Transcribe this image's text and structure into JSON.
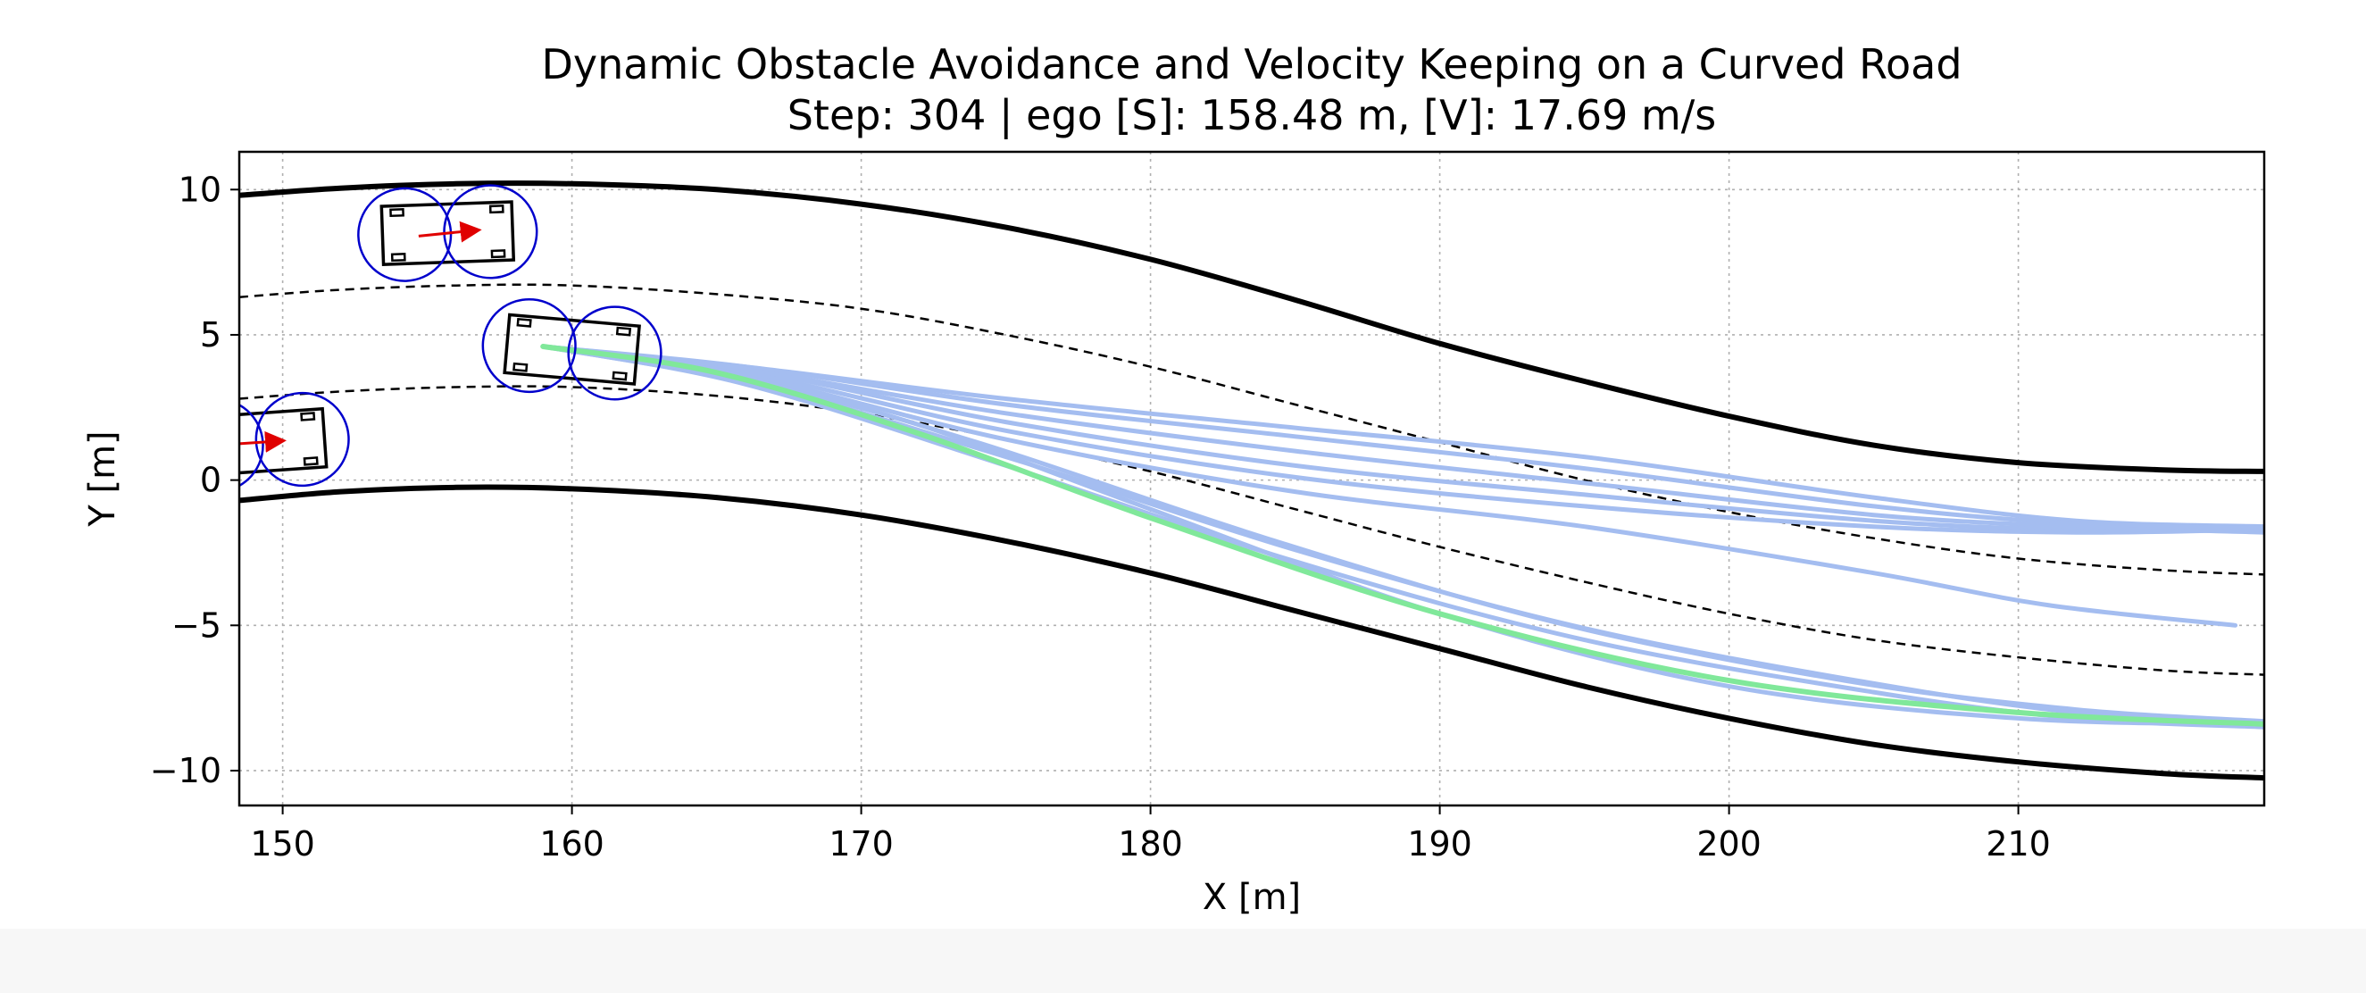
{
  "chart_data": {
    "type": "line",
    "title": "Dynamic Obstacle Avoidance and Velocity Keeping on a Curved Road",
    "subtitle": "Step: 304 | ego [S]: 158.48 m, [V]: 17.69 m/s",
    "xlabel": "X [m]",
    "ylabel": "Y [m]",
    "xlim": [
      148.5,
      218.5
    ],
    "ylim": [
      -11.2,
      11.3
    ],
    "xticks": [
      150,
      160,
      170,
      180,
      190,
      200,
      210
    ],
    "xtick_labels": [
      "150",
      "160",
      "170",
      "180",
      "190",
      "200",
      "210"
    ],
    "yticks": [
      10,
      5,
      0,
      -5,
      -10
    ],
    "ytick_labels": [
      "10",
      "5",
      "0",
      "−5",
      "−10"
    ],
    "grid": true,
    "road_boundaries": [
      {
        "name": "road-upper-boundary",
        "style": "solid",
        "color": "#000000",
        "points": [
          [
            148.5,
            9.8
          ],
          [
            152,
            10.05
          ],
          [
            156,
            10.2
          ],
          [
            160,
            10.2
          ],
          [
            165,
            10.0
          ],
          [
            170,
            9.5
          ],
          [
            175,
            8.7
          ],
          [
            180,
            7.6
          ],
          [
            185,
            6.2
          ],
          [
            190,
            4.7
          ],
          [
            195,
            3.4
          ],
          [
            200,
            2.2
          ],
          [
            205,
            1.2
          ],
          [
            210,
            0.6
          ],
          [
            215,
            0.35
          ],
          [
            218.5,
            0.3
          ]
        ]
      },
      {
        "name": "road-lower-boundary",
        "style": "solid",
        "color": "#000000",
        "points": [
          [
            148.5,
            -0.7
          ],
          [
            152,
            -0.4
          ],
          [
            156,
            -0.25
          ],
          [
            160,
            -0.3
          ],
          [
            165,
            -0.6
          ],
          [
            170,
            -1.2
          ],
          [
            175,
            -2.1
          ],
          [
            180,
            -3.2
          ],
          [
            185,
            -4.5
          ],
          [
            190,
            -5.8
          ],
          [
            195,
            -7.1
          ],
          [
            200,
            -8.2
          ],
          [
            205,
            -9.1
          ],
          [
            210,
            -9.7
          ],
          [
            215,
            -10.1
          ],
          [
            218.5,
            -10.25
          ]
        ]
      }
    ],
    "lane_lines": [
      {
        "name": "lane-divider-upper",
        "style": "dashed",
        "color": "#000000",
        "points": [
          [
            148.5,
            6.3
          ],
          [
            152,
            6.55
          ],
          [
            156,
            6.7
          ],
          [
            160,
            6.7
          ],
          [
            165,
            6.4
          ],
          [
            170,
            5.9
          ],
          [
            175,
            5.0
          ],
          [
            180,
            3.9
          ],
          [
            185,
            2.6
          ],
          [
            190,
            1.3
          ],
          [
            195,
            0.0
          ],
          [
            200,
            -1.1
          ],
          [
            205,
            -2.0
          ],
          [
            210,
            -2.7
          ],
          [
            215,
            -3.1
          ],
          [
            218.5,
            -3.25
          ]
        ]
      },
      {
        "name": "lane-divider-lower",
        "style": "dashed",
        "color": "#000000",
        "points": [
          [
            148.5,
            2.8
          ],
          [
            152,
            3.05
          ],
          [
            156,
            3.2
          ],
          [
            160,
            3.2
          ],
          [
            165,
            2.9
          ],
          [
            170,
            2.3
          ],
          [
            175,
            1.4
          ],
          [
            180,
            0.3
          ],
          [
            185,
            -1.0
          ],
          [
            190,
            -2.3
          ],
          [
            195,
            -3.5
          ],
          [
            200,
            -4.6
          ],
          [
            205,
            -5.5
          ],
          [
            210,
            -6.1
          ],
          [
            215,
            -6.55
          ],
          [
            218.5,
            -6.7
          ]
        ]
      }
    ],
    "candidate_trajectories": {
      "color": "#a4bdf0",
      "series": [
        {
          "name": "candidate-1",
          "points": [
            [
              159,
              4.6
            ],
            [
              166,
              3.9
            ],
            [
              175,
              2.8
            ],
            [
              185,
              1.8
            ],
            [
              195,
              0.8
            ],
            [
              205,
              -0.6
            ],
            [
              212,
              -1.4
            ],
            [
              218.5,
              -1.6
            ]
          ]
        },
        {
          "name": "candidate-2",
          "points": [
            [
              159,
              4.6
            ],
            [
              166,
              3.9
            ],
            [
              175,
              2.6
            ],
            [
              185,
              1.5
            ],
            [
              195,
              0.4
            ],
            [
              205,
              -0.9
            ],
            [
              212,
              -1.5
            ],
            [
              218.5,
              -1.7
            ]
          ]
        },
        {
          "name": "candidate-3",
          "points": [
            [
              159,
              4.6
            ],
            [
              166,
              3.8
            ],
            [
              175,
              2.3
            ],
            [
              185,
              1.0
            ],
            [
              195,
              -0.1
            ],
            [
              205,
              -1.2
            ],
            [
              212,
              -1.6
            ],
            [
              218.5,
              -1.8
            ]
          ]
        },
        {
          "name": "candidate-4",
          "points": [
            [
              159,
              4.6
            ],
            [
              166,
              3.8
            ],
            [
              175,
              2.0
            ],
            [
              185,
              0.5
            ],
            [
              195,
              -0.5
            ],
            [
              205,
              -1.4
            ],
            [
              212,
              -1.7
            ],
            [
              218.5,
              -1.6
            ]
          ]
        },
        {
          "name": "candidate-5",
          "points": [
            [
              159,
              4.6
            ],
            [
              166,
              3.7
            ],
            [
              175,
              1.7
            ],
            [
              185,
              0.1
            ],
            [
              195,
              -0.9
            ],
            [
              205,
              -1.6
            ],
            [
              212,
              -1.8
            ],
            [
              218.5,
              -1.7
            ]
          ]
        },
        {
          "name": "candidate-6",
          "points": [
            [
              159,
              4.6
            ],
            [
              166,
              3.6
            ],
            [
              175,
              1.4
            ],
            [
              185,
              -0.4
            ],
            [
              195,
              -1.6
            ],
            [
              205,
              -3.2
            ],
            [
              211,
              -4.3
            ],
            [
              217.5,
              -5.0
            ]
          ]
        },
        {
          "name": "candidate-7",
          "points": [
            [
              159,
              4.6
            ],
            [
              166,
              3.4
            ],
            [
              175,
              0.8
            ],
            [
              185,
              -2.4
            ],
            [
              195,
              -5.1
            ],
            [
              205,
              -7.0
            ],
            [
              212,
              -8.0
            ],
            [
              218.5,
              -8.4
            ]
          ]
        },
        {
          "name": "candidate-8",
          "points": [
            [
              159,
              4.6
            ],
            [
              166,
              3.3
            ],
            [
              175,
              0.5
            ],
            [
              185,
              -2.8
            ],
            [
              195,
              -5.5
            ],
            [
              205,
              -7.3
            ],
            [
              212,
              -8.2
            ],
            [
              218.5,
              -8.5
            ]
          ]
        },
        {
          "name": "candidate-9",
          "points": [
            [
              159,
              4.6
            ],
            [
              166,
              3.4
            ],
            [
              172,
              1.9
            ],
            [
              180,
              -1.0
            ],
            [
              190,
              -4.6
            ],
            [
              200,
              -7.1
            ],
            [
              210,
              -8.2
            ],
            [
              218.5,
              -8.4
            ]
          ]
        },
        {
          "name": "candidate-10",
          "points": [
            [
              159,
              4.6
            ],
            [
              166,
              3.5
            ],
            [
              174,
              1.3
            ],
            [
              184,
              -2.0
            ],
            [
              194,
              -4.9
            ],
            [
              204,
              -6.9
            ],
            [
              212,
              -7.9
            ],
            [
              218.5,
              -8.3
            ]
          ]
        }
      ]
    },
    "selected_trajectory": {
      "name": "selected-trajectory",
      "color": "#80e89a",
      "points": [
        [
          159,
          4.6
        ],
        [
          165,
          3.7
        ],
        [
          172,
          1.6
        ],
        [
          180,
          -1.3
        ],
        [
          190,
          -4.6
        ],
        [
          200,
          -6.9
        ],
        [
          210,
          -8.0
        ],
        [
          218.5,
          -8.4
        ]
      ]
    },
    "vehicles": [
      {
        "name": "ego-vehicle",
        "x": 160.0,
        "y": 4.5,
        "heading_deg": -5,
        "length": 4.5,
        "width": 2.0,
        "circle_radius": 1.6,
        "color": "#0000cc",
        "velocity_arrow": false
      },
      {
        "name": "obstacle-vehicle-upper",
        "x": 155.7,
        "y": 8.5,
        "heading_deg": 2,
        "length": 4.5,
        "width": 2.0,
        "circle_radius": 1.6,
        "color": "#0000cc",
        "velocity_arrow": true,
        "arrow_dx": 2.0,
        "arrow_dy": 0.2,
        "arrow_color": "#e00000"
      },
      {
        "name": "obstacle-vehicle-lower",
        "x": 149.2,
        "y": 1.3,
        "heading_deg": 4,
        "length": 4.5,
        "width": 2.0,
        "circle_radius": 1.6,
        "color": "#0000cc",
        "velocity_arrow": true,
        "arrow_dx": 1.5,
        "arrow_dy": 0.1,
        "arrow_color": "#e00000"
      }
    ]
  }
}
